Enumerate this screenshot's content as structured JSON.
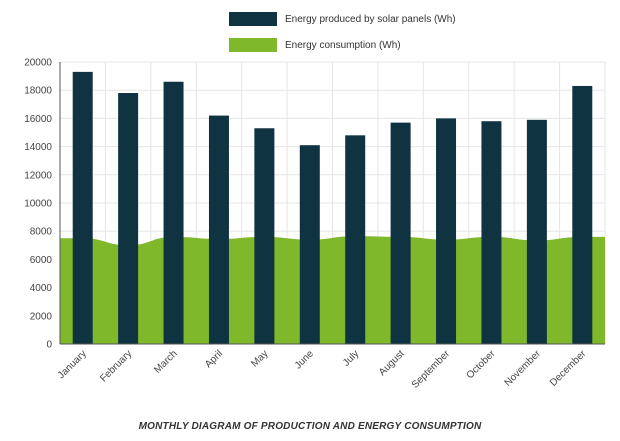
{
  "colors": {
    "production": "#0f3340",
    "consumption": "#7fb82a",
    "grid": "#e5e5e5",
    "axis": "#555555",
    "text": "#444444"
  },
  "legend": {
    "production_label": "Energy produced by solar panels (Wh)",
    "consumption_label": "Energy consumption (Wh)"
  },
  "caption": "MONTHLY DIAGRAM OF PRODUCTION AND ENERGY CONSUMPTION",
  "chart_data": {
    "type": "bar",
    "categories": [
      "January",
      "February",
      "March",
      "April",
      "May",
      "June",
      "July",
      "August",
      "September",
      "October",
      "November",
      "December"
    ],
    "series": [
      {
        "name": "Energy produced by solar panels (Wh)",
        "type": "bar",
        "values": [
          19300,
          17800,
          18600,
          16200,
          15300,
          14100,
          14800,
          15700,
          16000,
          15800,
          15900,
          18300
        ]
      },
      {
        "name": "Energy consumption (Wh)",
        "type": "area",
        "values": [
          7500,
          7000,
          7600,
          7450,
          7600,
          7400,
          7650,
          7600,
          7400,
          7600,
          7350,
          7600
        ]
      }
    ],
    "ylim": [
      0,
      20000
    ],
    "yticks": [
      0,
      2000,
      4000,
      6000,
      8000,
      10000,
      12000,
      14000,
      16000,
      18000,
      20000
    ],
    "grid": true,
    "legend_position": "top"
  }
}
